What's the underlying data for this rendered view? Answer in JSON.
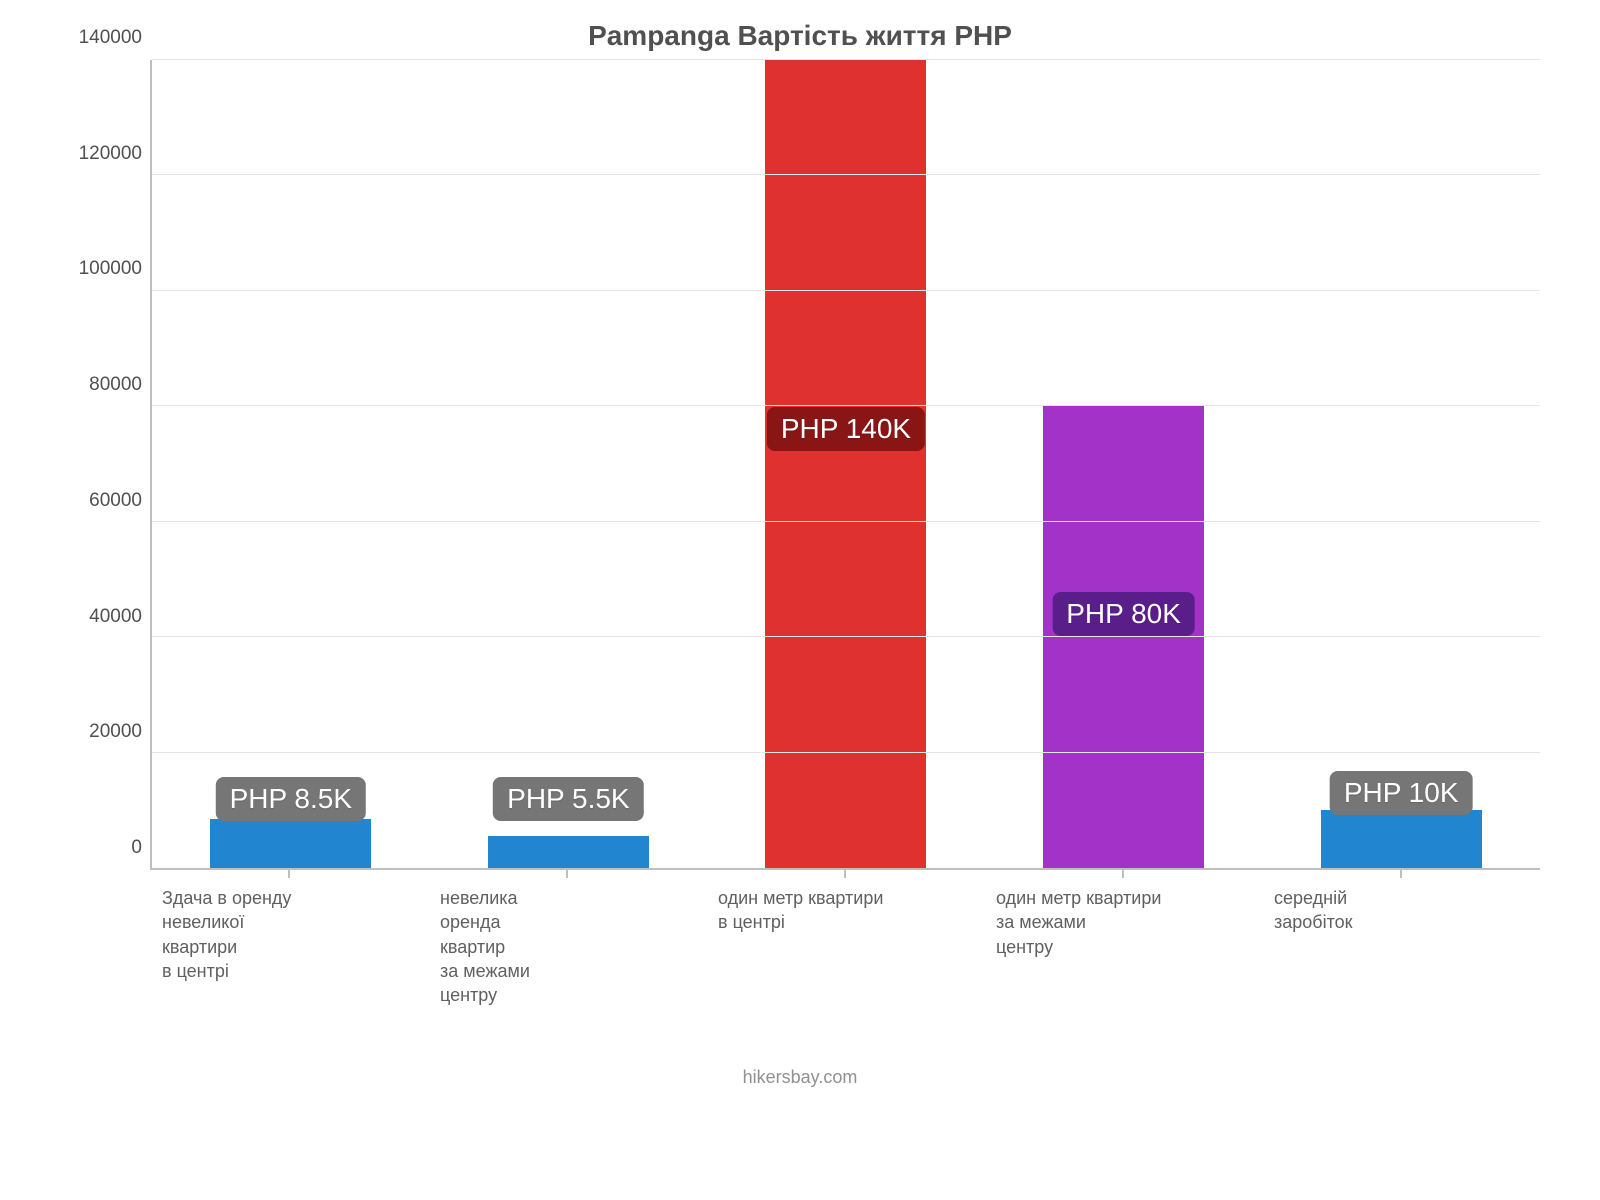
{
  "chart": {
    "type": "bar",
    "title": "Pampanga Вартість життя PHP",
    "title_fontsize": 28,
    "title_color": "#505050",
    "background_color": "#ffffff",
    "axis_color": "#bfbfbf",
    "grid_color": "#e5e5e5",
    "ylim": [
      0,
      140000
    ],
    "ytick_step": 20000,
    "yticks": [
      {
        "v": 0,
        "label": "0"
      },
      {
        "v": 20000,
        "label": "20000"
      },
      {
        "v": 40000,
        "label": "40000"
      },
      {
        "v": 60000,
        "label": "60000"
      },
      {
        "v": 80000,
        "label": "80000"
      },
      {
        "v": 100000,
        "label": "100000"
      },
      {
        "v": 120000,
        "label": "120000"
      },
      {
        "v": 140000,
        "label": "140000"
      }
    ],
    "tick_fontsize": 19,
    "xlabel_fontsize": 18,
    "bar_width_pct": 58,
    "value_label_fontsize": 28,
    "bars": [
      {
        "category": "Здача в оренду\nневеликої\nквартири\nв центрі",
        "value": 8500,
        "value_label": "PHP 8.5K",
        "bar_color": "#2185d0",
        "badge_color": "#767676",
        "badge_y": 12000
      },
      {
        "category": "невелика\nоренда\nквартир\nза межами\nцентру",
        "value": 5500,
        "value_label": "PHP 5.5K",
        "bar_color": "#2185d0",
        "badge_color": "#767676",
        "badge_y": 12000
      },
      {
        "category": "один метр квартири\nв центрі",
        "value": 140000,
        "value_label": "PHP 140K",
        "bar_color": "#e03131",
        "badge_color": "#8a1515",
        "badge_y": 76000
      },
      {
        "category": "один метр квартири\nза межами\nцентру",
        "value": 80000,
        "value_label": "PHP 80K",
        "bar_color": "#a333c8",
        "badge_color": "#5a1e8a",
        "badge_y": 44000
      },
      {
        "category": "середній\nзаробіток",
        "value": 10000,
        "value_label": "PHP 10K",
        "bar_color": "#2185d0",
        "badge_color": "#767676",
        "badge_y": 13000
      }
    ],
    "credit": "hikersbay.com",
    "credit_fontsize": 18,
    "credit_color": "#909090"
  }
}
